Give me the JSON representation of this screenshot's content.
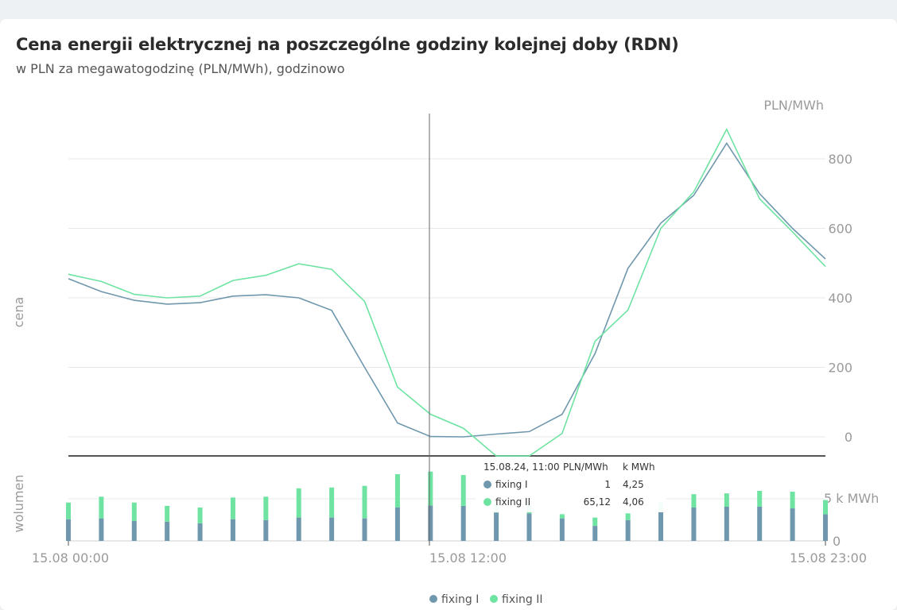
{
  "chart_data": {
    "type": "line",
    "title": "Cena energii elektrycznej na poszczególne godziny kolejnej doby (RDN)",
    "subtitle": "w PLN za megawatogodzinę (PLN/MWh), godzinowo",
    "price_axis": {
      "label": "cena",
      "unit": "PLN/MWh",
      "ticks": [
        0,
        200,
        400,
        600,
        800
      ],
      "range": [
        -55,
        930
      ]
    },
    "volume_axis": {
      "label": "wolumen",
      "ticks": [
        "0",
        "5 k MWh"
      ],
      "range": [
        0,
        8
      ]
    },
    "x": [
      "00:00",
      "01:00",
      "02:00",
      "03:00",
      "04:00",
      "05:00",
      "06:00",
      "07:00",
      "08:00",
      "09:00",
      "10:00",
      "11:00",
      "12:00",
      "13:00",
      "14:00",
      "15:00",
      "16:00",
      "17:00",
      "18:00",
      "19:00",
      "20:00",
      "21:00",
      "22:00",
      "23:00"
    ],
    "x_tick_labels": [
      "15.08 00:00",
      "15.08 12:00",
      "15.08 23:00"
    ],
    "series": [
      {
        "name": "fixing I",
        "color": "#6f97ad",
        "price": [
          455,
          418,
          393,
          382,
          386,
          405,
          409,
          400,
          364,
          200,
          40,
          1,
          0,
          8,
          15,
          65,
          240,
          485,
          615,
          695,
          845,
          700,
          600,
          512
        ],
        "volume": [
          2.6,
          2.7,
          2.4,
          2.3,
          2.1,
          2.6,
          2.5,
          2.8,
          2.8,
          2.7,
          4.0,
          4.25,
          4.2,
          3.4,
          3.3,
          2.7,
          1.8,
          2.5,
          3.5,
          4.0,
          4.1,
          4.1,
          3.9,
          3.2
        ]
      },
      {
        "name": "fixing II",
        "color": "#6ee3a2",
        "price": [
          468,
          447,
          410,
          400,
          405,
          450,
          465,
          498,
          482,
          390,
          143,
          65.12,
          25,
          -55,
          -55,
          10,
          275,
          365,
          600,
          705,
          885,
          685,
          590,
          490
        ],
        "volume": [
          2.0,
          2.6,
          2.2,
          1.9,
          1.9,
          2.6,
          2.8,
          3.5,
          3.6,
          3.9,
          4.0,
          4.06,
          3.7,
          1.0,
          1.2,
          0.5,
          1.0,
          0.8,
          1.2,
          1.6,
          1.6,
          1.9,
          2.0,
          1.7
        ]
      }
    ],
    "tooltip": {
      "time": "15.08.24, 11:00",
      "col_price": "PLN/MWh",
      "col_volume": "k MWh",
      "rows": [
        {
          "name": "fixing I",
          "price": "1",
          "volume": "4,25"
        },
        {
          "name": "fixing II",
          "price": "65,12",
          "volume": "4,06"
        }
      ]
    },
    "legend": [
      "fixing I",
      "fixing II"
    ],
    "legend_position": "bottom-center",
    "grid": true
  }
}
